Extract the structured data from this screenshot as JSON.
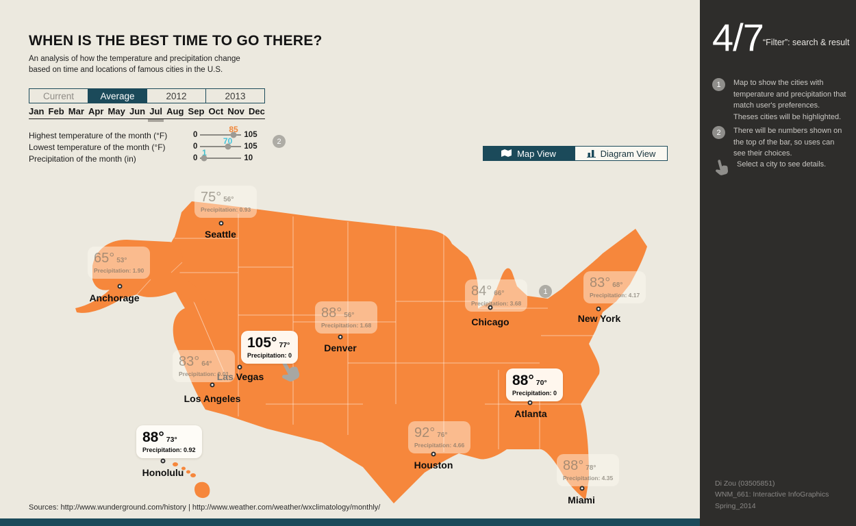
{
  "header": {
    "title": "WHEN IS THE BEST TIME TO GO THERE?",
    "subtitle_line1": "An analysis of how the temperature and precipitation change",
    "subtitle_line2": "based on time and locations of famous cities in the U.S."
  },
  "tabs": [
    {
      "label": "Current",
      "selected": false
    },
    {
      "label": "Average",
      "selected": true
    },
    {
      "label": "2012",
      "selected": false
    },
    {
      "label": "2013",
      "selected": false
    }
  ],
  "months": [
    "Jan",
    "Feb",
    "Mar",
    "Apr",
    "May",
    "Jun",
    "Jul",
    "Aug",
    "Sep",
    "Oct",
    "Nov",
    "Dec"
  ],
  "selected_month": "Jul",
  "filters": [
    {
      "label": "Highest temperature of the month (°F)",
      "min": "0",
      "max": "105",
      "value": "85",
      "value_color": "#F0883C",
      "pct": 81
    },
    {
      "label": "Lowest temperature of the month (°F)",
      "min": "0",
      "max": "105",
      "value": "70",
      "value_color": "#45C5DC",
      "pct": 67
    },
    {
      "label": "Precipitation of the month (in)",
      "min": "0",
      "max": "10",
      "value": "1",
      "value_color": "#45C0CC",
      "pct": 10
    }
  ],
  "slider_badge": "2",
  "map_badge": "1",
  "view_toggle": {
    "map_label": "Map View",
    "diagram_label": "Diagram View",
    "active": "map",
    "icons": {
      "map": "map-icon",
      "diagram": "bar-chart-icon"
    }
  },
  "cities": [
    {
      "name": "Seattle",
      "high": "75°",
      "low": "56°",
      "precip": "Precipitation: 0.93",
      "highlighted": false
    },
    {
      "name": "Anchorage",
      "high": "65°",
      "low": "53°",
      "precip": "Precipitation: 1.90",
      "highlighted": false
    },
    {
      "name": "New York",
      "high": "83°",
      "low": "68°",
      "precip": "Precipitation: 4.17",
      "highlighted": false
    },
    {
      "name": "Chicago",
      "high": "84°",
      "low": "66°",
      "precip": "Precipitation: 3.68",
      "highlighted": false
    },
    {
      "name": "Denver",
      "high": "88°",
      "low": "56°",
      "precip": "Precipitation: 1.68",
      "highlighted": false
    },
    {
      "name": "Las Vegas",
      "high": "105°",
      "low": "77°",
      "precip": "Precipitation: 0",
      "highlighted": true
    },
    {
      "name": "Los Angeles",
      "high": "83°",
      "low": "64°",
      "precip": "Precipitation: 0.01",
      "highlighted": false
    },
    {
      "name": "Atlanta",
      "high": "88°",
      "low": "70°",
      "precip": "Precipitation: 0",
      "highlighted": true
    },
    {
      "name": "Houston",
      "high": "92°",
      "low": "76°",
      "precip": "Precipitation: 4.66",
      "highlighted": false
    },
    {
      "name": "Honolulu",
      "high": "88°",
      "low": "73°",
      "precip": "Precipitation: 0.92",
      "highlighted": true
    },
    {
      "name": "Miami",
      "high": "88°",
      "low": "78°",
      "precip": "Precipitation: 4.35",
      "highlighted": false
    }
  ],
  "sources": "Sources: http://www.wunderground.com/history   |   http://www.weather.com/weather/wxclimatology/monthly/",
  "sidebar": {
    "page": "4/7",
    "subtitle": "“Filter”: search & result",
    "steps": [
      {
        "num": "1",
        "text": "Map to show the cities with temperature and precipitation that match user's preferences. Theses cities will be highlighted."
      },
      {
        "num": "2",
        "text": "There will be numbers shown on the top of the bar, so uses can see their choices."
      }
    ],
    "hand_note": "Select a city to see details.",
    "hand_icon": "hand-cursor-icon",
    "credits": [
      "Di Zou (03505851)",
      "WNM_661: Interactive InfoGraphics",
      "Spring_2014"
    ]
  },
  "colors": {
    "background": "#ECE9DF",
    "map_orange": "#F6873C",
    "accent_teal": "#1B4A5A",
    "sidebar_dark": "#2E2D2B"
  }
}
